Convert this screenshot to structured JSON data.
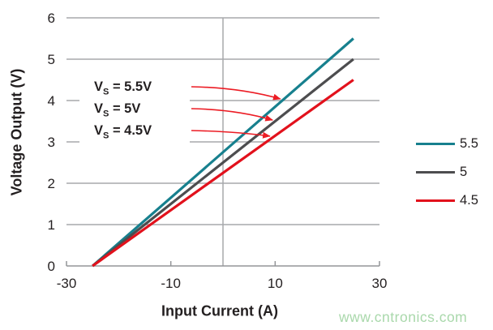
{
  "watermark": {
    "text": "www.cntronics.com",
    "color": "#A9D8AB"
  },
  "chart_data": {
    "type": "line",
    "title": "",
    "xlabel": "Input Current (A)",
    "ylabel": "Voltage Output (V)",
    "xlim": [
      -30,
      30
    ],
    "ylim": [
      0,
      6
    ],
    "x_ticks": [
      -30,
      -10,
      10,
      30
    ],
    "y_ticks": [
      0,
      1,
      2,
      3,
      4,
      5,
      6
    ],
    "grid": {
      "horizontal": true,
      "vertical_at_x": 0,
      "legend_position": "right-outside"
    },
    "series": [
      {
        "name": "5.5",
        "color": "#17808E",
        "x": [
          -25,
          25
        ],
        "y": [
          0,
          5.5
        ]
      },
      {
        "name": "5",
        "color": "#4D4D4F",
        "x": [
          -25,
          25
        ],
        "y": [
          0,
          5.0
        ]
      },
      {
        "name": "4.5",
        "color": "#E2111C",
        "x": [
          -25,
          25
        ],
        "y": [
          0,
          4.5
        ]
      }
    ],
    "annotations": [
      {
        "var": "V",
        "sub": "S",
        "rest": " = 5.5V",
        "series": 0,
        "arrow_target_x": 11
      },
      {
        "var": "V",
        "sub": "S",
        "rest": " = 5V",
        "series": 1,
        "arrow_target_x": 9.5
      },
      {
        "var": "V",
        "sub": "S",
        "rest": " = 4.5V",
        "series": 2,
        "arrow_target_x": 9
      }
    ],
    "arrow_color": "#EC1C24",
    "axis_color": "#939598",
    "grid_color": "#A7A9AC",
    "text_color": "#231F20"
  }
}
